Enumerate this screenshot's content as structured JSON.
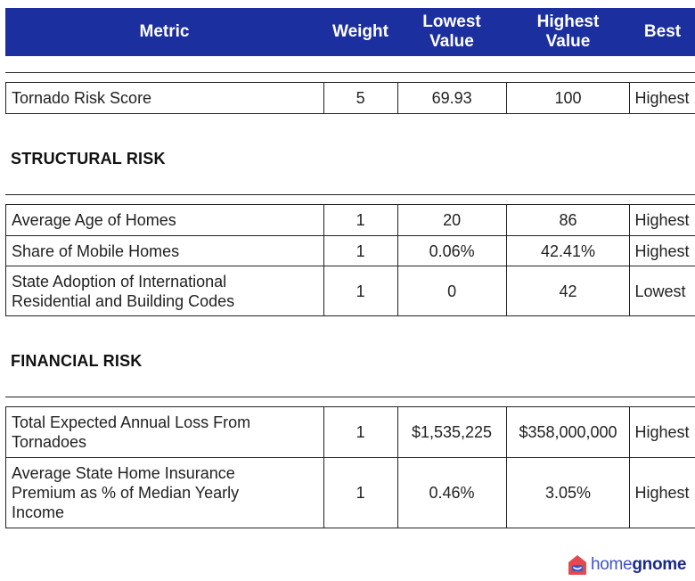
{
  "header": {
    "metric": "Metric",
    "weight": "Weight",
    "lowest": [
      "Lowest",
      "Value"
    ],
    "highest": [
      "Highest",
      "Value"
    ],
    "best": "Best"
  },
  "tornado_rows": [
    {
      "metric": [
        "Tornado Risk Score"
      ],
      "weight": "5",
      "lowest": "69.93",
      "highest": "100",
      "best": "Highest"
    }
  ],
  "structural": {
    "title": "STRUCTURAL RISK",
    "rows": [
      {
        "metric": [
          "Average Age of Homes"
        ],
        "weight": "1",
        "lowest": "20",
        "highest": "86",
        "best": "Highest"
      },
      {
        "metric": [
          "Share of Mobile Homes"
        ],
        "weight": "1",
        "lowest": "0.06%",
        "highest": "42.41%",
        "best": "Highest"
      },
      {
        "metric": [
          "State Adoption of International",
          "Residential and Building Codes"
        ],
        "weight": "1",
        "lowest": "0",
        "highest": "42",
        "best": "Lowest"
      }
    ]
  },
  "financial": {
    "title": "FINANCIAL RISK",
    "rows": [
      {
        "metric": [
          "Total Expected Annual Loss From",
          "Tornadoes"
        ],
        "weight": "1",
        "lowest": "$1,535,225",
        "highest": "$358,000,000",
        "best": "Highest"
      },
      {
        "metric": [
          "Average State Home Insurance",
          "Premium as % of Median Yearly",
          "Income"
        ],
        "weight": "1",
        "lowest": "0.46%",
        "highest": "3.05%",
        "best": "Highest"
      }
    ]
  },
  "logo": {
    "word_light": "home",
    "word_bold": "gnome",
    "icon": "house-logo-icon"
  },
  "colors": {
    "header_bg": "#1c2f9e",
    "logo_red": "#e5484d",
    "logo_blue": "#3f55c4"
  }
}
